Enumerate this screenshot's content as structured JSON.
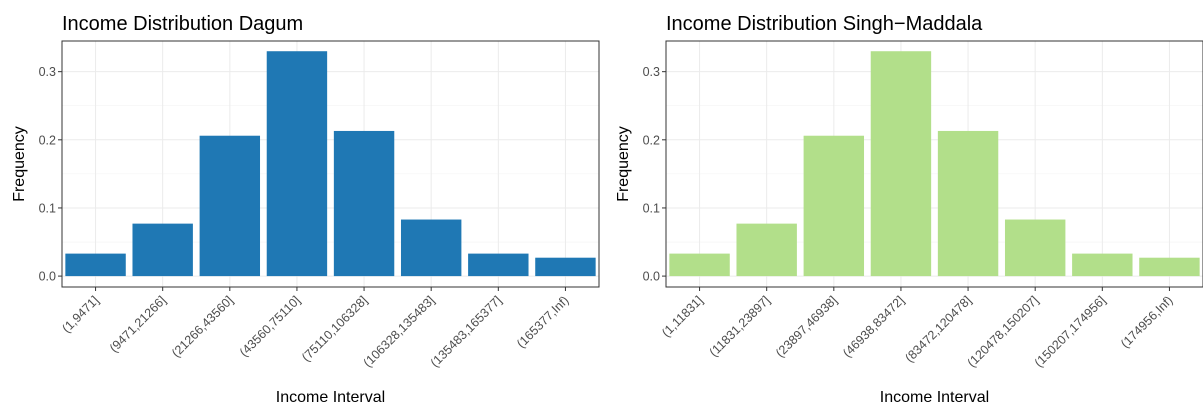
{
  "chart_data": [
    {
      "type": "bar",
      "title": "Income Distribution Dagum",
      "xlabel": "Income Interval",
      "ylabel": "Frequency",
      "ylim": [
        -0.016,
        0.345
      ],
      "yticks": [
        "0.0",
        "0.1",
        "0.2",
        "0.3"
      ],
      "color": "#1f78b4",
      "grid": true,
      "categories": [
        "(1,9471]",
        "(9471,21266]",
        "(21266,43560]",
        "(43560,75110]",
        "(75110,106328]",
        "(106328,135483]",
        "(135483,165377]",
        "(165377,Inf)"
      ],
      "values": [
        0.033,
        0.077,
        0.206,
        0.33,
        0.213,
        0.083,
        0.033,
        0.027
      ]
    },
    {
      "type": "bar",
      "title": "Income Distribution Singh−Maddala",
      "xlabel": "Income Interval",
      "ylabel": "Frequency",
      "ylim": [
        -0.016,
        0.345
      ],
      "yticks": [
        "0.0",
        "0.1",
        "0.2",
        "0.3"
      ],
      "color": "#b2df8a",
      "grid": true,
      "categories": [
        "(1,11831]",
        "(11831,23897]",
        "(23897,46938]",
        "(46938,83472]",
        "(83472,120478]",
        "(120478,150207]",
        "(150207,174956]",
        "(174956,Inf)"
      ],
      "values": [
        0.033,
        0.077,
        0.206,
        0.33,
        0.213,
        0.083,
        0.033,
        0.027
      ]
    }
  ]
}
